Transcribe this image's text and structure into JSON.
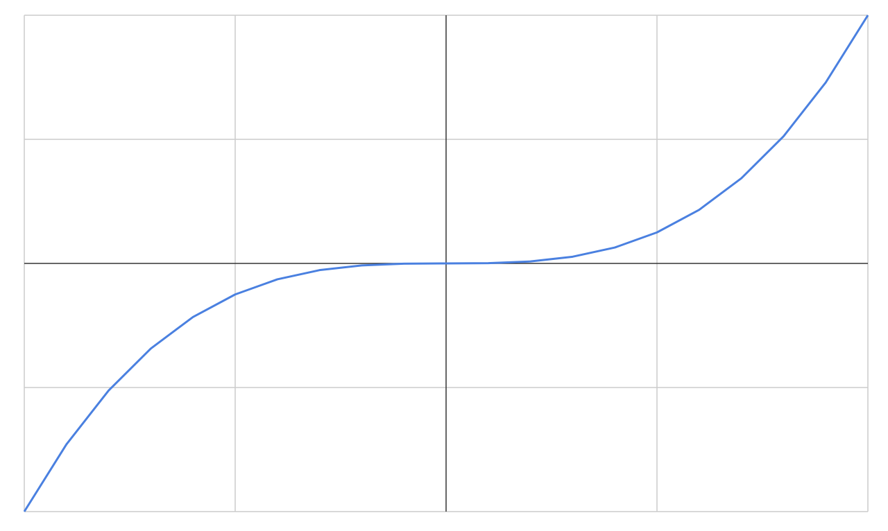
{
  "chart_data": {
    "type": "line",
    "title": "",
    "xlabel": "",
    "ylabel": "",
    "xlim": [
      -1,
      1
    ],
    "ylim": [
      -1,
      1
    ],
    "grid": true,
    "x_gridlines": [
      -1,
      -0.5,
      0,
      0.5,
      1
    ],
    "y_gridlines": [
      -1,
      -0.5,
      0,
      0.5,
      1
    ],
    "tick_labels_shown": false,
    "series": [
      {
        "color": "#4a80e0",
        "x": [
          -1,
          -0.9,
          -0.8,
          -0.7,
          -0.6,
          -0.5,
          -0.4,
          -0.3,
          -0.2,
          -0.1,
          0,
          0.1,
          0.2,
          0.3,
          0.4,
          0.5,
          0.6,
          0.7,
          0.8,
          0.9,
          1
        ],
        "y": [
          -1,
          -0.729,
          -0.512,
          -0.343,
          -0.216,
          -0.125,
          -0.064,
          -0.027,
          -0.008,
          -0.001,
          0,
          0.001,
          0.008,
          0.027,
          0.064,
          0.125,
          0.216,
          0.343,
          0.512,
          0.729,
          1
        ]
      }
    ],
    "colors": {
      "grid": "#cccccc",
      "axis": "#333333",
      "line": "#4a80e0"
    }
  }
}
